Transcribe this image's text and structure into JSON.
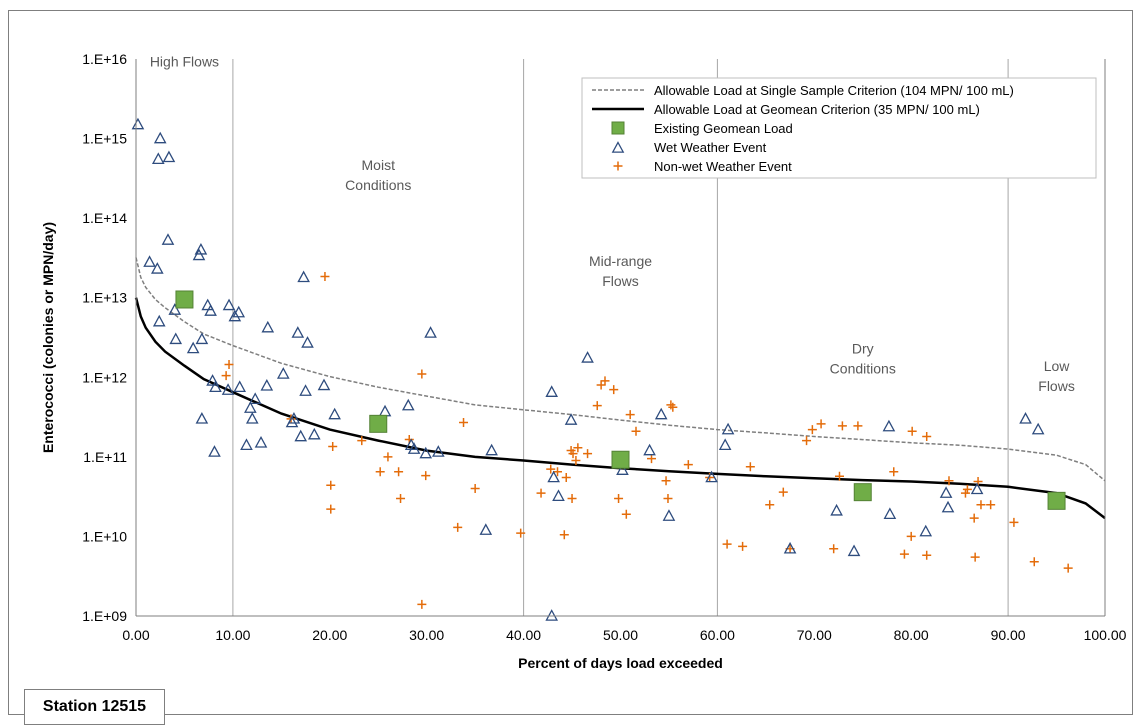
{
  "station_label": "Station 12515",
  "chart_data": {
    "type": "scatter",
    "title": "",
    "xlabel": "Percent of days load exceeded",
    "ylabel": "Enterococci (colonies or MPN/day)",
    "xlim": [
      0,
      100
    ],
    "ylim": [
      1000000000.0,
      1e+16
    ],
    "y_scale": "log",
    "x_ticks": [
      "0.00",
      "10.00",
      "20.00",
      "30.00",
      "40.00",
      "50.00",
      "60.00",
      "70.00",
      "80.00",
      "90.00",
      "100.00"
    ],
    "y_ticks": [
      "1.E+09",
      "1.E+10",
      "1.E+11",
      "1.E+12",
      "1.E+13",
      "1.E+14",
      "1.E+15",
      "1.E+16"
    ],
    "x_tick_values": [
      0,
      10,
      20,
      30,
      40,
      50,
      60,
      70,
      80,
      90,
      100
    ],
    "y_tick_values": [
      1000000000.0,
      10000000000.0,
      100000000000.0,
      1000000000000.0,
      10000000000000.0,
      100000000000000.0,
      1000000000000000.0,
      1e+16
    ],
    "grid": "vertical lines at 10, 40, 60, 90",
    "zone_boundaries": [
      10,
      40,
      60,
      90
    ],
    "zones": [
      {
        "lines": [
          "High Flows"
        ],
        "x": 5,
        "y": 8000000000000000.0
      },
      {
        "lines": [
          "Moist",
          "Conditions"
        ],
        "x": 25,
        "y": 400000000000000.0
      },
      {
        "lines": [
          "Mid-range",
          "Flows"
        ],
        "x": 50,
        "y": 25000000000000.0
      },
      {
        "lines": [
          "Dry",
          "Conditions"
        ],
        "x": 75,
        "y": 2000000000000.0
      },
      {
        "lines": [
          "Low",
          "Flows"
        ],
        "x": 95,
        "y": 1200000000000.0
      }
    ],
    "legend_position": "top-right",
    "colors": {
      "single": "#7f7f7f",
      "geomean": "#000000",
      "existing_fill": "#70ad47",
      "existing_stroke": "#548235",
      "wet": "#2e4c7e",
      "nonwet": "#e46c0a"
    },
    "series": [
      {
        "name": "Allowable Load at Single Sample Criterion (104 MPN/ 100 mL)",
        "kind": "dashed-line",
        "points": [
          [
            0,
            32000000000000.0
          ],
          [
            0.5,
            18000000000000.0
          ],
          [
            1,
            13500000000000.0
          ],
          [
            2,
            9500000000000.0
          ],
          [
            3,
            7500000000000.0
          ],
          [
            5,
            5000000000000.0
          ],
          [
            7,
            3500000000000.0
          ],
          [
            10,
            2500000000000.0
          ],
          [
            15,
            1500000000000.0
          ],
          [
            20,
            1020000000000.0
          ],
          [
            25,
            750000000000.0
          ],
          [
            30,
            580000000000.0
          ],
          [
            35,
            450000000000.0
          ],
          [
            40,
            390000000000.0
          ],
          [
            45,
            340000000000.0
          ],
          [
            50,
            290000000000.0
          ],
          [
            55,
            250000000000.0
          ],
          [
            60,
            220000000000.0
          ],
          [
            65,
            200000000000.0
          ],
          [
            70,
            180000000000.0
          ],
          [
            75,
            165000000000.0
          ],
          [
            80,
            150000000000.0
          ],
          [
            85,
            140000000000.0
          ],
          [
            90,
            125000000000.0
          ],
          [
            95,
            105000000000.0
          ],
          [
            98,
            80000000000.0
          ],
          [
            100,
            50000000000.0
          ]
        ]
      },
      {
        "name": "Allowable Load at Geomean Criterion (35 MPN/ 100 mL)",
        "kind": "solid-line",
        "points": [
          [
            0,
            10000000000000.0
          ],
          [
            0.5,
            5800000000000.0
          ],
          [
            1,
            4200000000000.0
          ],
          [
            2,
            2800000000000.0
          ],
          [
            3,
            2100000000000.0
          ],
          [
            5,
            1400000000000.0
          ],
          [
            7,
            950000000000.0
          ],
          [
            10,
            650000000000.0
          ],
          [
            15,
            350000000000.0
          ],
          [
            20,
            220000000000.0
          ],
          [
            25,
            160000000000.0
          ],
          [
            30,
            120000000000.0
          ],
          [
            35,
            100000000000.0
          ],
          [
            40,
            90000000000.0
          ],
          [
            45,
            80000000000.0
          ],
          [
            50,
            72000000000.0
          ],
          [
            55,
            66000000000.0
          ],
          [
            60,
            61000000000.0
          ],
          [
            65,
            57000000000.0
          ],
          [
            70,
            54000000000.0
          ],
          [
            75,
            51000000000.0
          ],
          [
            80,
            49000000000.0
          ],
          [
            85,
            46000000000.0
          ],
          [
            90,
            42000000000.0
          ],
          [
            95,
            35000000000.0
          ],
          [
            98,
            26000000000.0
          ],
          [
            100,
            17000000000.0
          ]
        ]
      },
      {
        "name": "Existing Geomean Load",
        "kind": "square",
        "points": [
          [
            5,
            9500000000000.0
          ],
          [
            25,
            260000000000.0
          ],
          [
            50,
            92000000000.0
          ],
          [
            75,
            36000000000.0
          ],
          [
            95,
            28000000000.0
          ]
        ]
      },
      {
        "name": "Wet Weather Event",
        "kind": "triangle",
        "points": [
          [
            0.2,
            1500000000000000.0
          ],
          [
            2.5,
            1000000000000000.0
          ],
          [
            2.3,
            550000000000000.0
          ],
          [
            3.4,
            580000000000000.0
          ],
          [
            3.3,
            53000000000000.0
          ],
          [
            1.4,
            28000000000000.0
          ],
          [
            2.2,
            23000000000000.0
          ],
          [
            6.5,
            34000000000000.0
          ],
          [
            6.7,
            40000000000000.0
          ],
          [
            4,
            7000000000000.0
          ],
          [
            2.4,
            5000000000000.0
          ],
          [
            7.4,
            8000000000000.0
          ],
          [
            7.7,
            6800000000000.0
          ],
          [
            9.6,
            8000000000000.0
          ],
          [
            10.2,
            5800000000000.0
          ],
          [
            10.6,
            6500000000000.0
          ],
          [
            4.1,
            3000000000000.0
          ],
          [
            6.8,
            3000000000000.0
          ],
          [
            5.9,
            2300000000000.0
          ],
          [
            13.6,
            4200000000000.0
          ],
          [
            17.3,
            18000000000000.0
          ],
          [
            16.7,
            3600000000000.0
          ],
          [
            17.7,
            2700000000000.0
          ],
          [
            7.9,
            900000000000.0
          ],
          [
            8.2,
            750000000000.0
          ],
          [
            9.5,
            690000000000.0
          ],
          [
            10.7,
            750000000000.0
          ],
          [
            13.5,
            780000000000.0
          ],
          [
            12.3,
            530000000000.0
          ],
          [
            11.8,
            410000000000.0
          ],
          [
            12,
            300000000000.0
          ],
          [
            15.2,
            1100000000000.0
          ],
          [
            17.5,
            670000000000.0
          ],
          [
            19.4,
            790000000000.0
          ],
          [
            16.3,
            300000000000.0
          ],
          [
            16.1,
            270000000000.0
          ],
          [
            20.5,
            340000000000.0
          ],
          [
            18.4,
            190000000000.0
          ],
          [
            17,
            180000000000.0
          ],
          [
            6.8,
            300000000000.0
          ],
          [
            8.1,
            115000000000.0
          ],
          [
            11.4,
            140000000000.0
          ],
          [
            12.9,
            150000000000.0
          ],
          [
            25.7,
            370000000000.0
          ],
          [
            28.1,
            440000000000.0
          ],
          [
            30.4,
            3600000000000.0
          ],
          [
            28.4,
            140000000000.0
          ],
          [
            28.7,
            125000000000.0
          ],
          [
            29.9,
            110000000000.0
          ],
          [
            31.2,
            115000000000.0
          ],
          [
            36.7,
            120000000000.0
          ],
          [
            36.1,
            12000000000.0
          ],
          [
            42.9,
            650000000000.0
          ],
          [
            46.6,
            1750000000000.0
          ],
          [
            44.9,
            290000000000.0
          ],
          [
            43.1,
            55000000000.0
          ],
          [
            43.6,
            32000000000.0
          ],
          [
            42.9,
            1000000000.0
          ],
          [
            53,
            120000000000.0
          ],
          [
            54.2,
            340000000000.0
          ],
          [
            50.2,
            68000000000.0
          ],
          [
            55,
            18000000000.0
          ],
          [
            59.4,
            55000000000.0
          ],
          [
            61.1,
            220000000000.0
          ],
          [
            60.8,
            140000000000.0
          ],
          [
            67.5,
            7000000000.0
          ],
          [
            72.3,
            21000000000.0
          ],
          [
            74.1,
            6500000000.0
          ],
          [
            77.7,
            240000000000.0
          ],
          [
            77.8,
            19000000000.0
          ],
          [
            81.5,
            11500000000.0
          ],
          [
            83.6,
            35000000000.0
          ],
          [
            83.8,
            23000000000.0
          ],
          [
            86.8,
            39000000000.0
          ],
          [
            91.8,
            300000000000.0
          ],
          [
            93.1,
            220000000000.0
          ]
        ]
      },
      {
        "name": "Non-wet Weather Event",
        "kind": "plus",
        "points": [
          [
            9.3,
            1050000000000.0
          ],
          [
            9.6,
            1450000000000.0
          ],
          [
            16,
            300000000000.0
          ],
          [
            19.5,
            18500000000000.0
          ],
          [
            20.3,
            135000000000.0
          ],
          [
            20.1,
            44000000000.0
          ],
          [
            20.1,
            22000000000.0
          ],
          [
            23.3,
            160000000000.0
          ],
          [
            25.2,
            65000000000.0
          ],
          [
            26,
            100000000000.0
          ],
          [
            27.1,
            65000000000.0
          ],
          [
            27.3,
            30000000000.0
          ],
          [
            28.2,
            165000000000.0
          ],
          [
            29.5,
            1100000000000.0
          ],
          [
            29.9,
            58000000000.0
          ],
          [
            29.5,
            1400000000.0
          ],
          [
            33.2,
            13000000000.0
          ],
          [
            33.8,
            270000000000.0
          ],
          [
            35,
            40000000000.0
          ],
          [
            39.7,
            11000000000.0
          ],
          [
            41.8,
            35000000000.0
          ],
          [
            42.8,
            70000000000.0
          ],
          [
            43.5,
            65000000000.0
          ],
          [
            44.2,
            10500000000.0
          ],
          [
            44.4,
            55000000000.0
          ],
          [
            44.9,
            120000000000.0
          ],
          [
            45,
            30000000000.0
          ],
          [
            45.1,
            110000000000.0
          ],
          [
            45.4,
            90000000000.0
          ],
          [
            45.6,
            130000000000.0
          ],
          [
            46.6,
            110000000000.0
          ],
          [
            47.6,
            440000000000.0
          ],
          [
            48,
            800000000000.0
          ],
          [
            48.4,
            900000000000.0
          ],
          [
            49.3,
            700000000000.0
          ],
          [
            49.8,
            30000000000.0
          ],
          [
            50.6,
            19000000000.0
          ],
          [
            51,
            340000000000.0
          ],
          [
            51.6,
            210000000000.0
          ],
          [
            53.2,
            95000000000.0
          ],
          [
            54.7,
            50000000000.0
          ],
          [
            54.9,
            30000000000.0
          ],
          [
            55.2,
            450000000000.0
          ],
          [
            55.4,
            420000000000.0
          ],
          [
            57,
            80000000000.0
          ],
          [
            59.2,
            55000000000.0
          ],
          [
            61,
            8000000000.0
          ],
          [
            62.6,
            7500000000.0
          ],
          [
            63.4,
            75000000000.0
          ],
          [
            65.4,
            25000000000.0
          ],
          [
            66.8,
            36000000000.0
          ],
          [
            67.5,
            7000000000.0
          ],
          [
            69.2,
            160000000000.0
          ],
          [
            69.8,
            220000000000.0
          ],
          [
            70.7,
            260000000000.0
          ],
          [
            72,
            7000000000.0
          ],
          [
            72.9,
            245000000000.0
          ],
          [
            72.6,
            57000000000.0
          ],
          [
            74.5,
            245000000000.0
          ],
          [
            78.2,
            65000000000.0
          ],
          [
            79.3,
            6000000000.0
          ],
          [
            80,
            10000000000.0
          ],
          [
            80.1,
            210000000000.0
          ],
          [
            81.6,
            180000000000.0
          ],
          [
            81.6,
            5800000000.0
          ],
          [
            83.9,
            50000000000.0
          ],
          [
            85.6,
            35000000000.0
          ],
          [
            85.8,
            39000000000.0
          ],
          [
            86.5,
            17000000000.0
          ],
          [
            86.6,
            5500000000.0
          ],
          [
            86.9,
            49000000000.0
          ],
          [
            87.2,
            25000000000.0
          ],
          [
            88.2,
            25000000000.0
          ],
          [
            90.6,
            15000000000.0
          ],
          [
            92.7,
            4800000000.0
          ],
          [
            96.2,
            4000000000.0
          ]
        ]
      }
    ]
  }
}
